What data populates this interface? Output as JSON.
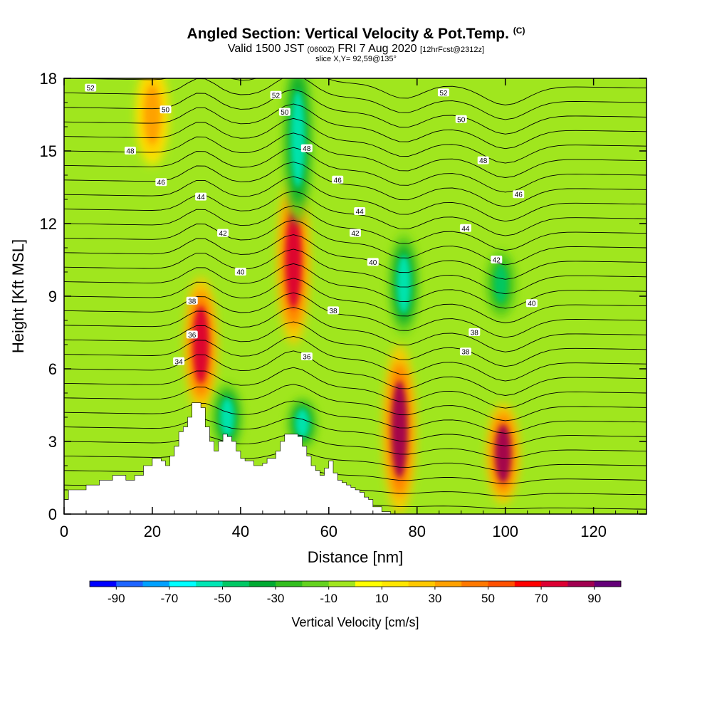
{
  "chart_data": {
    "type": "heatmap",
    "title": "Angled Section: Vertical Velocity & Pot.Temp.",
    "title_unit": "(C)",
    "subtitle_valid": "Valid 1500 JST",
    "subtitle_utc": "(0600Z)",
    "subtitle_date": "FRI 7 Aug 2020",
    "subtitle_forecast": "[12hrFcst@2312z]",
    "slice_label": "slice X,Y= 92,59@135°",
    "xlabel": "Distance [nm]",
    "ylabel": "Height [Kft MSL]",
    "xlim": [
      0,
      132
    ],
    "ylim": [
      0,
      18
    ],
    "x_ticks": [
      0,
      20,
      40,
      60,
      80,
      100,
      120
    ],
    "x_tick_labels": [
      "0",
      "20",
      "40",
      "60",
      "80",
      "100",
      "120"
    ],
    "y_ticks": [
      0,
      3,
      6,
      9,
      12,
      15,
      18
    ],
    "y_tick_labels": [
      "0",
      "3",
      "6",
      "9",
      "12",
      "15",
      "18"
    ],
    "colorbar": {
      "label": "Vertical Velocity [cm/s]",
      "range": [
        -100,
        100
      ],
      "tick_values": [
        -90,
        -70,
        -50,
        -30,
        -10,
        10,
        30,
        50,
        70,
        90
      ],
      "tick_labels": [
        "-90",
        "-70",
        "-50",
        "-30",
        "-10",
        "10",
        "30",
        "50",
        "70",
        "90"
      ],
      "colors": [
        "#0000ff",
        "#1e64ff",
        "#00a0ff",
        "#00ffff",
        "#00e6b4",
        "#00c864",
        "#00aa32",
        "#32be1e",
        "#64d21e",
        "#a0e61e",
        "#ffff00",
        "#ffe600",
        "#ffc800",
        "#ffa000",
        "#ff7800",
        "#ff5000",
        "#ff0000",
        "#dc0032",
        "#a00050",
        "#640078"
      ]
    },
    "updraft_cores": [
      {
        "x": 31,
        "y_range": [
          5,
          9
        ],
        "value": 70
      },
      {
        "x": 52,
        "y_range": [
          8,
          13
        ],
        "value": 70
      },
      {
        "x": 76,
        "y_range": [
          1,
          6
        ],
        "value": 80
      },
      {
        "x": 99.5,
        "y_range": [
          1,
          4
        ],
        "value": 75
      },
      {
        "x": 20,
        "y_range": [
          15,
          18
        ],
        "value": 30
      }
    ],
    "downdraft_cores": [
      {
        "x": 53,
        "y_range": [
          13,
          18
        ],
        "value": -50
      },
      {
        "x": 77,
        "y_range": [
          8,
          11
        ],
        "value": -50
      },
      {
        "x": 99,
        "y_range": [
          8.5,
          10.5
        ],
        "value": -40
      },
      {
        "x": 37,
        "y_range": [
          3,
          5
        ],
        "value": -50
      },
      {
        "x": 54,
        "y_range": [
          3,
          4.5
        ],
        "value": -50
      }
    ],
    "contour_labels": [
      {
        "x": 6,
        "y": 17.6,
        "text": "52"
      },
      {
        "x": 23,
        "y": 16.7,
        "text": "50"
      },
      {
        "x": 15,
        "y": 15.0,
        "text": "48"
      },
      {
        "x": 22,
        "y": 13.7,
        "text": "46"
      },
      {
        "x": 31,
        "y": 13.1,
        "text": "44"
      },
      {
        "x": 36,
        "y": 11.6,
        "text": "42"
      },
      {
        "x": 40,
        "y": 10.0,
        "text": "40"
      },
      {
        "x": 29,
        "y": 8.8,
        "text": "38"
      },
      {
        "x": 29,
        "y": 7.4,
        "text": "36"
      },
      {
        "x": 26,
        "y": 6.3,
        "text": "34"
      },
      {
        "x": 48,
        "y": 17.3,
        "text": "52"
      },
      {
        "x": 50,
        "y": 16.6,
        "text": "50"
      },
      {
        "x": 55,
        "y": 15.1,
        "text": "48"
      },
      {
        "x": 62,
        "y": 13.8,
        "text": "46"
      },
      {
        "x": 67,
        "y": 12.5,
        "text": "44"
      },
      {
        "x": 66,
        "y": 11.6,
        "text": "42"
      },
      {
        "x": 70,
        "y": 10.4,
        "text": "40"
      },
      {
        "x": 61,
        "y": 8.4,
        "text": "38"
      },
      {
        "x": 55,
        "y": 6.5,
        "text": "36"
      },
      {
        "x": 86,
        "y": 17.4,
        "text": "52"
      },
      {
        "x": 90,
        "y": 16.3,
        "text": "50"
      },
      {
        "x": 95,
        "y": 14.6,
        "text": "48"
      },
      {
        "x": 103,
        "y": 13.2,
        "text": "46"
      },
      {
        "x": 91,
        "y": 11.8,
        "text": "44"
      },
      {
        "x": 98,
        "y": 10.5,
        "text": "42"
      },
      {
        "x": 106,
        "y": 8.7,
        "text": "40"
      },
      {
        "x": 93,
        "y": 7.5,
        "text": "38"
      },
      {
        "x": 91,
        "y": 6.7,
        "text": "38"
      }
    ],
    "terrain": [
      [
        0,
        0.6
      ],
      [
        1,
        1.0
      ],
      [
        5,
        1.2
      ],
      [
        8,
        1.4
      ],
      [
        11,
        1.6
      ],
      [
        13,
        1.6
      ],
      [
        14,
        1.4
      ],
      [
        16,
        1.6
      ],
      [
        18,
        2.0
      ],
      [
        20,
        2.3
      ],
      [
        22,
        2.2
      ],
      [
        23,
        2.0
      ],
      [
        24,
        2.4
      ],
      [
        25,
        2.8
      ],
      [
        26,
        3.4
      ],
      [
        27,
        3.6
      ],
      [
        28,
        4.0
      ],
      [
        29,
        4.6
      ],
      [
        30,
        4.6
      ],
      [
        31,
        4.4
      ],
      [
        32,
        3.6
      ],
      [
        33,
        3.0
      ],
      [
        34,
        2.6
      ],
      [
        35,
        3.0
      ],
      [
        36,
        3.3
      ],
      [
        37,
        3.2
      ],
      [
        38,
        3.0
      ],
      [
        39,
        2.6
      ],
      [
        40,
        2.3
      ],
      [
        41,
        2.2
      ],
      [
        43,
        2.0
      ],
      [
        45,
        2.1
      ],
      [
        46,
        2.3
      ],
      [
        48,
        2.6
      ],
      [
        49,
        3.0
      ],
      [
        50,
        3.3
      ],
      [
        52,
        3.3
      ],
      [
        53,
        3.2
      ],
      [
        54,
        2.8
      ],
      [
        55,
        2.4
      ],
      [
        56,
        2.0
      ],
      [
        57,
        1.8
      ],
      [
        58,
        1.6
      ],
      [
        59,
        1.9
      ],
      [
        60,
        2.2
      ],
      [
        61,
        1.7
      ],
      [
        62,
        1.4
      ],
      [
        63,
        1.3
      ],
      [
        64,
        1.2
      ],
      [
        65,
        1.1
      ],
      [
        66,
        1.0
      ],
      [
        67,
        0.9
      ],
      [
        68,
        0.7
      ],
      [
        69,
        0.6
      ],
      [
        70,
        0.3
      ],
      [
        72,
        0.1
      ],
      [
        74,
        0.0
      ]
    ]
  }
}
